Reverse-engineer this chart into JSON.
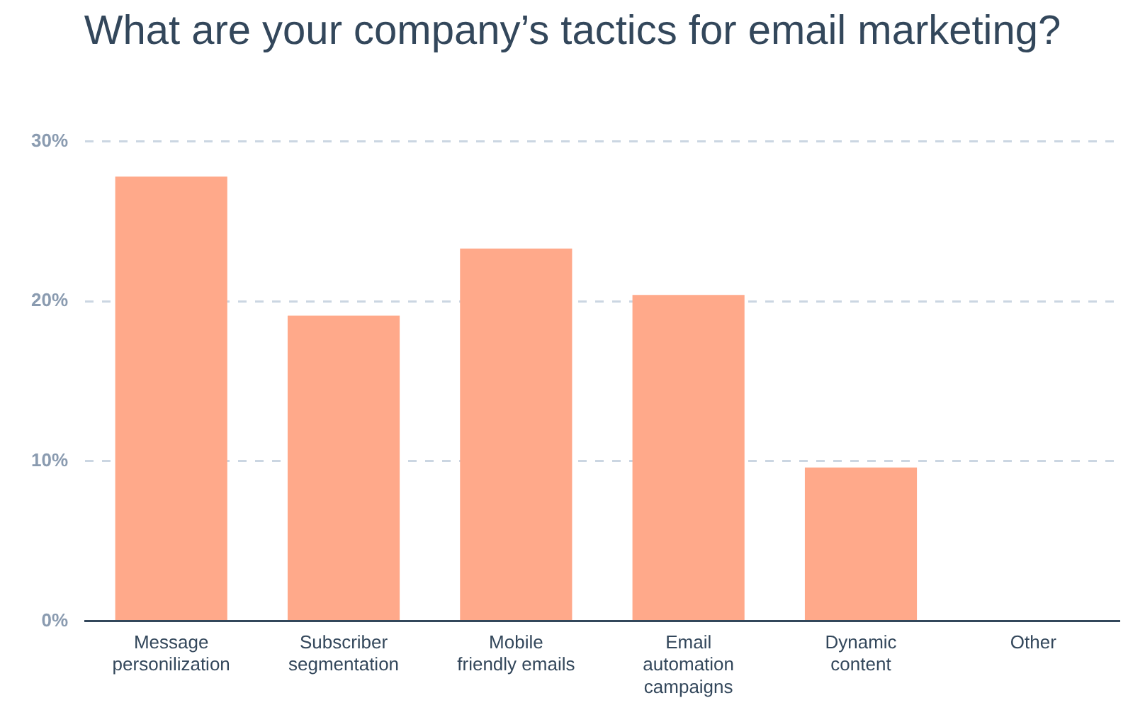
{
  "chart_data": {
    "type": "bar",
    "title": "What are your company’s tactics for email marketing?",
    "categories": [
      "Message\npersonilization",
      "Subscriber\nsegmentation",
      "Mobile\nfriendly emails",
      "Email\nautomation\ncampaigns",
      "Dynamic\ncontent",
      "Other"
    ],
    "values": [
      27.8,
      19.1,
      23.3,
      20.4,
      9.6,
      0
    ],
    "color": "#ffa98a",
    "ylim": [
      0,
      30
    ],
    "yticks": [
      {
        "value": 0,
        "label": "0%"
      },
      {
        "value": 10,
        "label": "10%"
      },
      {
        "value": 20,
        "label": "20%"
      },
      {
        "value": 30,
        "label": "30%"
      }
    ],
    "grid": "y"
  }
}
